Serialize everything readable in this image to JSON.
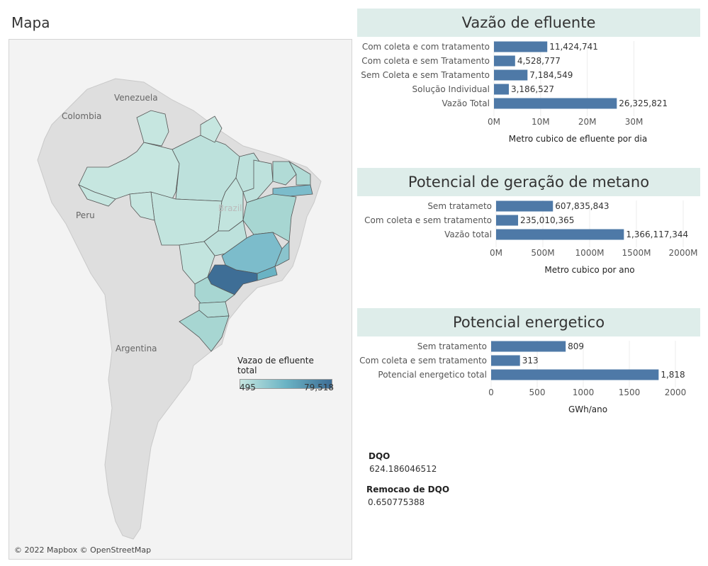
{
  "map": {
    "title": "Mapa",
    "country_labels": {
      "venezuela": "Venezuela",
      "colombia": "Colombia",
      "peru": "Peru",
      "brazil": "Brazil",
      "argentina": "Argentina"
    },
    "legend": {
      "title": "Vazao de efluente total",
      "min": "495",
      "max": "79,518"
    },
    "attribution": "© 2022 Mapbox © OpenStreetMap",
    "colors": {
      "low": "#c6e6e0",
      "mid": "#6ab3c4",
      "high": "#3e6e96",
      "land": "#dedede",
      "ocean": "#f3f3f3"
    }
  },
  "chart_data": [
    {
      "type": "bar",
      "orientation": "horizontal",
      "title": "Vazão de efluente",
      "categories": [
        "Com coleta e com tratamento",
        "Com coleta e sem Tratamento",
        "Sem Coleta e sem Tratamento",
        "Solução Individual",
        "Vazão Total"
      ],
      "values": [
        11424741,
        4528777,
        7184549,
        3186527,
        26325821
      ],
      "value_labels": [
        "11,424,741",
        "4,528,777",
        "7,184,549",
        "3,186,527",
        "26,325,821"
      ],
      "xlabel": "Metro cubico de efluente por dia",
      "xlim": [
        0,
        36000000
      ],
      "ticks": [
        0,
        10000000,
        20000000,
        30000000
      ],
      "tick_labels": [
        "0M",
        "10M",
        "20M",
        "30M"
      ],
      "grid": true,
      "color": "#4e79a7"
    },
    {
      "type": "bar",
      "orientation": "horizontal",
      "title": "Potencial de geração de metano",
      "categories": [
        "Sem tratameto",
        "Com coleta e sem tratamento",
        "Vazão total"
      ],
      "values": [
        607835843,
        235010365,
        1366117344
      ],
      "value_labels": [
        "607,835,843",
        "235,010,365",
        "1,366,117,344"
      ],
      "xlabel": "Metro cubico por ano",
      "xlim": [
        0,
        2000000000
      ],
      "ticks": [
        0,
        500000000,
        1000000000,
        1500000000,
        2000000000
      ],
      "tick_labels": [
        "0M",
        "500M",
        "1000M",
        "1500M",
        "2000M"
      ],
      "grid": true,
      "color": "#4e79a7"
    },
    {
      "type": "bar",
      "orientation": "horizontal",
      "title": "Potencial energetico",
      "categories": [
        "Sem tratamento",
        "Com coleta e sem tratamento",
        "Potencial energetico total"
      ],
      "values": [
        809,
        313,
        1818
      ],
      "value_labels": [
        "809",
        "313",
        "1,818"
      ],
      "xlabel": "GWh/ano",
      "xlim": [
        0,
        2100
      ],
      "ticks": [
        0,
        500,
        1000,
        1500,
        2000
      ],
      "tick_labels": [
        "0",
        "500",
        "1000",
        "1500",
        "2000"
      ],
      "grid": true,
      "color": "#4e79a7"
    }
  ],
  "kpis": {
    "dqo_label": "DQO",
    "dqo_value": "624.186046512",
    "remocao_label": "Remocao de DQO",
    "remocao_value": "0.650775388"
  }
}
